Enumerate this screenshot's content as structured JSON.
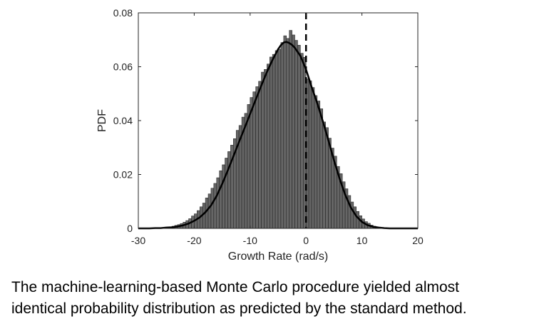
{
  "chart_data": {
    "type": "bar",
    "xlabel": "Growth Rate (rad/s)",
    "ylabel": "PDF",
    "xlim": [
      -30,
      20
    ],
    "ylim": [
      0,
      0.08
    ],
    "x_ticks": [
      -30,
      -20,
      -10,
      0,
      10,
      20
    ],
    "y_ticks": [
      0,
      0.02,
      0.04,
      0.06,
      0.08
    ],
    "x_tick_labels": [
      "-30",
      "-20",
      "-10",
      "0",
      "10",
      "20"
    ],
    "y_tick_labels": [
      "0",
      "0.02",
      "0.04",
      "0.06",
      "0.08"
    ],
    "grid": false,
    "colors": {
      "bars": "#666666",
      "bar_edge": "#1a1a1a",
      "curve": "#000000",
      "reference_line": "#000000"
    },
    "histogram": {
      "bin_width": 0.5,
      "bin_centers": [
        -29.75,
        -29.25,
        -28.75,
        -28.25,
        -27.75,
        -27.25,
        -26.75,
        -26.25,
        -25.75,
        -25.25,
        -24.75,
        -24.25,
        -23.75,
        -23.25,
        -22.75,
        -22.25,
        -21.75,
        -21.25,
        -20.75,
        -20.25,
        -19.75,
        -19.25,
        -18.75,
        -18.25,
        -17.75,
        -17.25,
        -16.75,
        -16.25,
        -15.75,
        -15.25,
        -14.75,
        -14.25,
        -13.75,
        -13.25,
        -12.75,
        -12.25,
        -11.75,
        -11.25,
        -10.75,
        -10.25,
        -9.75,
        -9.25,
        -8.75,
        -8.25,
        -7.75,
        -7.25,
        -6.75,
        -6.25,
        -5.75,
        -5.25,
        -4.75,
        -4.25,
        -3.75,
        -3.25,
        -2.75,
        -2.25,
        -1.75,
        -1.25,
        -0.75,
        -0.25,
        0.25,
        0.75,
        1.25,
        1.75,
        2.25,
        2.75,
        3.25,
        3.75,
        4.25,
        4.75,
        5.25,
        5.75,
        6.25,
        6.75,
        7.25,
        7.75,
        8.25,
        8.75,
        9.25,
        9.75,
        10.25,
        10.75,
        11.25,
        11.75,
        12.25,
        12.75,
        13.25,
        13.75,
        14.25,
        14.75,
        15.25,
        15.75,
        16.25,
        16.75,
        17.25,
        17.75,
        18.25,
        18.75,
        19.25,
        19.75
      ],
      "values": [
        0.0,
        0.0,
        0.0,
        0.0,
        0.0,
        0.0001,
        0.0001,
        0.0002,
        0.0002,
        0.0003,
        0.0004,
        0.0006,
        0.0008,
        0.0011,
        0.0014,
        0.0018,
        0.0023,
        0.0029,
        0.0036,
        0.0046,
        0.0054,
        0.0066,
        0.008,
        0.0094,
        0.0113,
        0.0128,
        0.0149,
        0.0167,
        0.0188,
        0.0214,
        0.0236,
        0.0261,
        0.0285,
        0.0309,
        0.0333,
        0.0364,
        0.0382,
        0.0413,
        0.0427,
        0.046,
        0.0486,
        0.0507,
        0.0526,
        0.0546,
        0.058,
        0.059,
        0.061,
        0.0636,
        0.0646,
        0.066,
        0.0665,
        0.069,
        0.0715,
        0.0705,
        0.0735,
        0.0718,
        0.0698,
        0.068,
        0.065,
        0.0635,
        0.0555,
        0.0548,
        0.0523,
        0.0493,
        0.0473,
        0.0444,
        0.0395,
        0.0374,
        0.0335,
        0.0298,
        0.0268,
        0.023,
        0.0203,
        0.0173,
        0.0147,
        0.0122,
        0.0098,
        0.008,
        0.0063,
        0.0047,
        0.0035,
        0.0025,
        0.0019,
        0.0012,
        0.0008,
        0.0005,
        0.0003,
        0.0002,
        0.0001,
        0.0001,
        0.0,
        0.0,
        0.0,
        0.0,
        0.0,
        0.0,
        0.0,
        0.0,
        0.0,
        0.0
      ]
    },
    "curve": {
      "x": [
        -30,
        -29,
        -28,
        -27,
        -26,
        -25,
        -24,
        -23,
        -22,
        -21,
        -20,
        -19,
        -18,
        -17,
        -16,
        -15,
        -14,
        -13,
        -12,
        -11,
        -10,
        -9,
        -8,
        -7,
        -6,
        -5,
        -4.5,
        -4,
        -3.5,
        -3,
        -2.5,
        -2,
        -1,
        0,
        1,
        2,
        3,
        4,
        5,
        6,
        7,
        8,
        9,
        10,
        11,
        12,
        13,
        14,
        15,
        16,
        17,
        18,
        19,
        20
      ],
      "y": [
        0.0,
        0.0,
        0.0,
        0.0001,
        0.0001,
        0.0003,
        0.0004,
        0.0007,
        0.0011,
        0.0018,
        0.0028,
        0.0041,
        0.006,
        0.0085,
        0.012,
        0.0165,
        0.0215,
        0.0267,
        0.032,
        0.0372,
        0.0425,
        0.0478,
        0.053,
        0.058,
        0.0625,
        0.0665,
        0.068,
        0.069,
        0.0692,
        0.0688,
        0.0681,
        0.067,
        0.064,
        0.059,
        0.0525,
        0.0465,
        0.0398,
        0.0327,
        0.0253,
        0.0185,
        0.0125,
        0.0078,
        0.0045,
        0.0024,
        0.0012,
        0.0006,
        0.0003,
        0.0001,
        0.0,
        0.0,
        0.0,
        0.0,
        0.0,
        0.0
      ]
    },
    "reference_line": {
      "x": 0,
      "style": "dashed"
    }
  },
  "caption": {
    "line1": "The machine-learning-based Monte Carlo procedure yielded almost",
    "line2": "identical probability distribution as predicted by the standard method."
  }
}
